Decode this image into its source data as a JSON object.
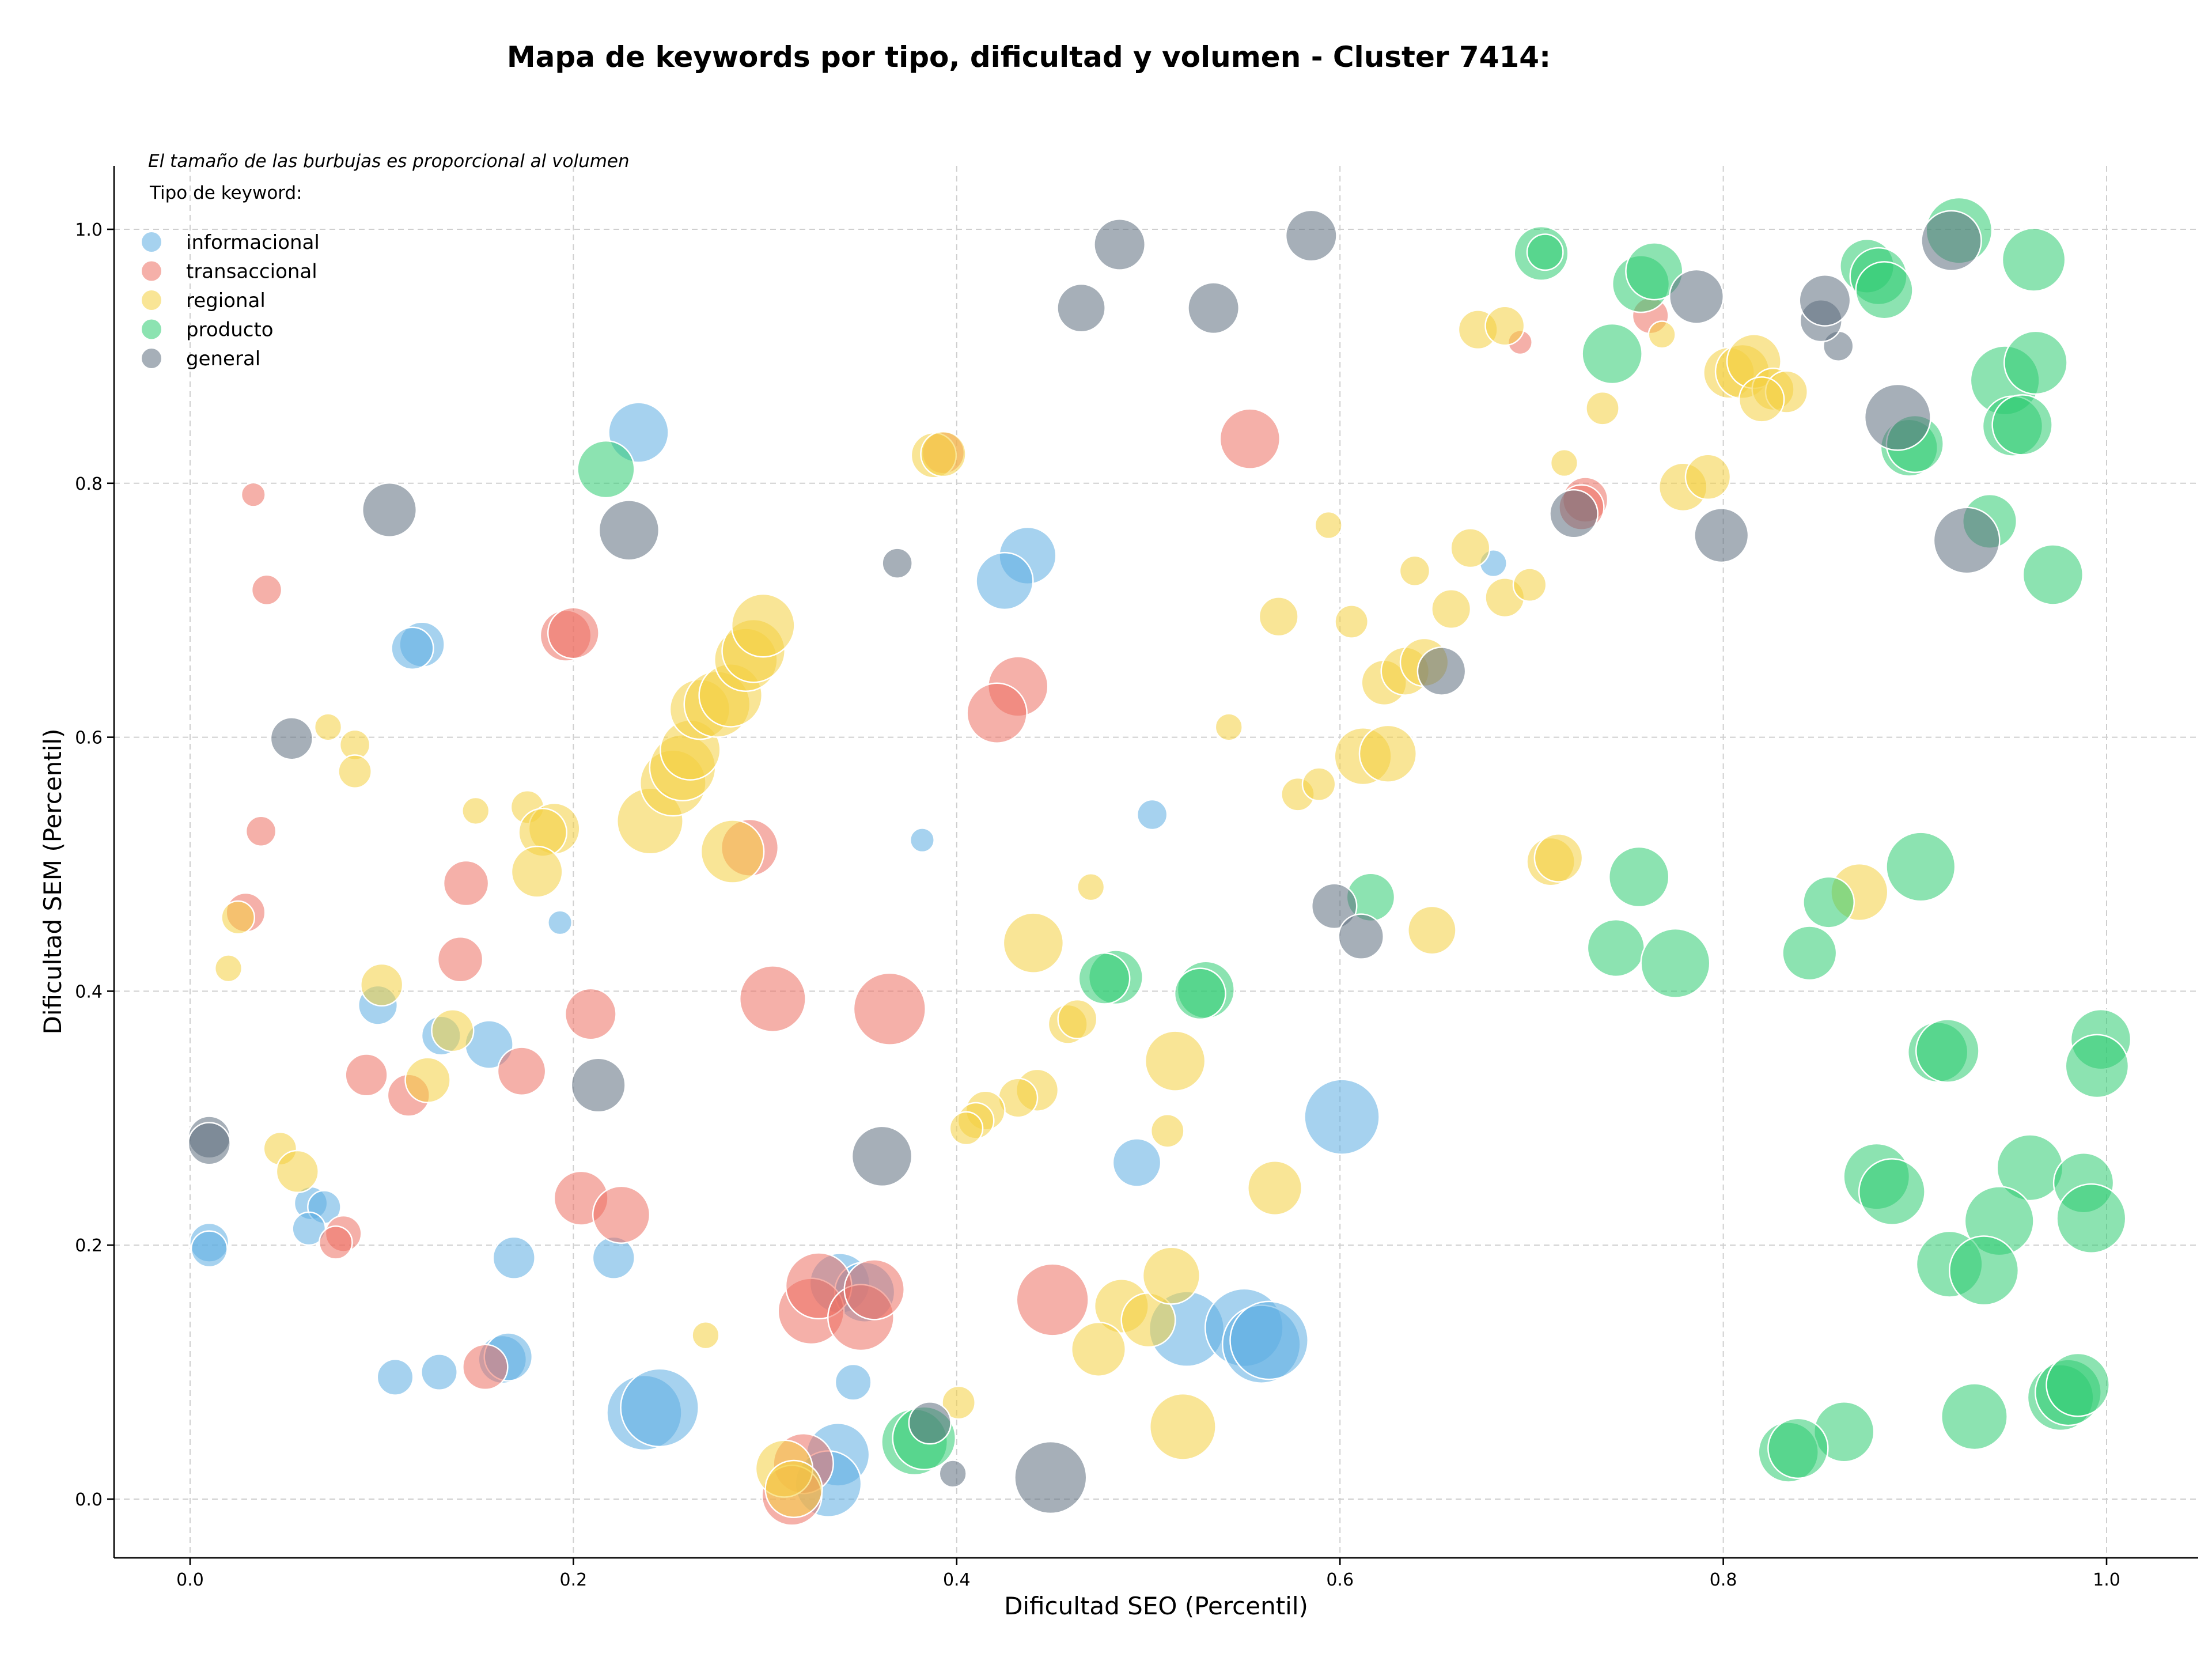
{
  "chart_data": {
    "type": "scatter",
    "title": "Mapa de keywords por tipo, dificultad y volumen - Cluster 7414:",
    "subtitle": "El tamaño de las burbujas es proporcional al volumen",
    "xlabel": "Dificultad SEO (Percentil)",
    "ylabel": "Dificultad SEM (Percentil)",
    "xlim": [
      -0.04,
      1.05
    ],
    "ylim": [
      -0.045,
      1.05
    ],
    "xticks": [
      "0.0",
      "0.2",
      "0.4",
      "0.6",
      "0.8",
      "1.0"
    ],
    "yticks": [
      "0.0",
      "0.2",
      "0.4",
      "0.6",
      "0.8",
      "1.0"
    ],
    "grid": true,
    "legend_title": "Tipo de keyword:",
    "legend_position": "top-left",
    "series": [
      {
        "name": "informacional",
        "color": "#5DADE2",
        "points": [
          [
            0.234,
            0.84,
            40
          ],
          [
            0.121,
            0.673,
            30
          ],
          [
            0.116,
            0.67,
            28
          ],
          [
            0.437,
            0.743,
            38
          ],
          [
            0.425,
            0.723,
            38
          ],
          [
            0.68,
            0.737,
            18
          ],
          [
            0.382,
            0.519,
            16
          ],
          [
            0.502,
            0.539,
            20
          ],
          [
            0.193,
            0.454,
            16
          ],
          [
            0.098,
            0.389,
            26
          ],
          [
            0.131,
            0.365,
            26
          ],
          [
            0.156,
            0.358,
            32
          ],
          [
            0.601,
            0.301,
            50
          ],
          [
            0.494,
            0.265,
            32
          ],
          [
            0.063,
            0.233,
            22
          ],
          [
            0.07,
            0.23,
            22
          ],
          [
            0.062,
            0.213,
            22
          ],
          [
            0.01,
            0.202,
            26
          ],
          [
            0.01,
            0.197,
            24
          ],
          [
            0.169,
            0.19,
            28
          ],
          [
            0.221,
            0.19,
            28
          ],
          [
            0.339,
            0.17,
            40
          ],
          [
            0.352,
            0.163,
            40
          ],
          [
            0.346,
            0.092,
            24
          ],
          [
            0.107,
            0.096,
            24
          ],
          [
            0.13,
            0.1,
            24
          ],
          [
            0.163,
            0.11,
            32
          ],
          [
            0.166,
            0.112,
            32
          ],
          [
            0.237,
            0.068,
            50
          ],
          [
            0.245,
            0.072,
            52
          ],
          [
            0.338,
            0.035,
            42
          ],
          [
            0.333,
            0.012,
            44
          ],
          [
            0.52,
            0.134,
            50
          ],
          [
            0.55,
            0.135,
            52
          ],
          [
            0.559,
            0.122,
            52
          ],
          [
            0.563,
            0.125,
            52
          ]
        ]
      },
      {
        "name": "transaccional",
        "color": "#EC7063",
        "points": [
          [
            0.033,
            0.791,
            16
          ],
          [
            0.04,
            0.716,
            20
          ],
          [
            0.037,
            0.526,
            20
          ],
          [
            0.029,
            0.462,
            26
          ],
          [
            0.144,
            0.485,
            30
          ],
          [
            0.141,
            0.425,
            30
          ],
          [
            0.196,
            0.68,
            34
          ],
          [
            0.2,
            0.682,
            34
          ],
          [
            0.432,
            0.64,
            40
          ],
          [
            0.421,
            0.619,
            40
          ],
          [
            0.553,
            0.835,
            40
          ],
          [
            0.393,
            0.824,
            28
          ],
          [
            0.292,
            0.513,
            38
          ],
          [
            0.304,
            0.394,
            44
          ],
          [
            0.365,
            0.386,
            48
          ],
          [
            0.209,
            0.382,
            34
          ],
          [
            0.092,
            0.334,
            28
          ],
          [
            0.114,
            0.318,
            28
          ],
          [
            0.173,
            0.337,
            32
          ],
          [
            0.204,
            0.237,
            36
          ],
          [
            0.225,
            0.224,
            38
          ],
          [
            0.08,
            0.209,
            24
          ],
          [
            0.076,
            0.202,
            22
          ],
          [
            0.154,
            0.104,
            30
          ],
          [
            0.324,
            0.148,
            44
          ],
          [
            0.328,
            0.168,
            44
          ],
          [
            0.35,
            0.143,
            44
          ],
          [
            0.357,
            0.165,
            40
          ],
          [
            0.45,
            0.157,
            48
          ],
          [
            0.32,
            0.028,
            40
          ],
          [
            0.314,
            0.003,
            40
          ],
          [
            0.762,
            0.932,
            24
          ],
          [
            0.694,
            0.911,
            16
          ],
          [
            0.728,
            0.787,
            30
          ],
          [
            0.726,
            0.781,
            30
          ]
        ]
      },
      {
        "name": "regional",
        "color": "#F4D03F",
        "points": [
          [
            0.072,
            0.608,
            18
          ],
          [
            0.086,
            0.594,
            20
          ],
          [
            0.086,
            0.573,
            22
          ],
          [
            0.149,
            0.542,
            18
          ],
          [
            0.176,
            0.545,
            22
          ],
          [
            0.19,
            0.528,
            34
          ],
          [
            0.184,
            0.525,
            32
          ],
          [
            0.181,
            0.494,
            34
          ],
          [
            0.025,
            0.458,
            22
          ],
          [
            0.02,
            0.418,
            18
          ],
          [
            0.1,
            0.405,
            28
          ],
          [
            0.137,
            0.369,
            28
          ],
          [
            0.124,
            0.33,
            30
          ],
          [
            0.047,
            0.276,
            22
          ],
          [
            0.056,
            0.258,
            28
          ],
          [
            0.24,
            0.534,
            44
          ],
          [
            0.252,
            0.564,
            44
          ],
          [
            0.257,
            0.576,
            44
          ],
          [
            0.261,
            0.59,
            40
          ],
          [
            0.266,
            0.622,
            40
          ],
          [
            0.275,
            0.626,
            44
          ],
          [
            0.282,
            0.633,
            42
          ],
          [
            0.29,
            0.661,
            42
          ],
          [
            0.294,
            0.668,
            42
          ],
          [
            0.299,
            0.688,
            42
          ],
          [
            0.283,
            0.51,
            42
          ],
          [
            0.388,
            0.822,
            30
          ],
          [
            0.393,
            0.823,
            30
          ],
          [
            0.44,
            0.438,
            40
          ],
          [
            0.458,
            0.374,
            26
          ],
          [
            0.463,
            0.378,
            26
          ],
          [
            0.47,
            0.482,
            18
          ],
          [
            0.442,
            0.322,
            28
          ],
          [
            0.432,
            0.316,
            26
          ],
          [
            0.415,
            0.306,
            26
          ],
          [
            0.41,
            0.298,
            24
          ],
          [
            0.405,
            0.292,
            22
          ],
          [
            0.514,
            0.345,
            40
          ],
          [
            0.51,
            0.29,
            22
          ],
          [
            0.401,
            0.076,
            22
          ],
          [
            0.269,
            0.129,
            18
          ],
          [
            0.31,
            0.024,
            38
          ],
          [
            0.315,
            0.008,
            38
          ],
          [
            0.486,
            0.152,
            36
          ],
          [
            0.5,
            0.141,
            36
          ],
          [
            0.512,
            0.176,
            38
          ],
          [
            0.474,
            0.118,
            36
          ],
          [
            0.518,
            0.057,
            44
          ],
          [
            0.566,
            0.245,
            36
          ],
          [
            0.542,
            0.608,
            18
          ],
          [
            0.578,
            0.555,
            22
          ],
          [
            0.589,
            0.563,
            22
          ],
          [
            0.594,
            0.767,
            18
          ],
          [
            0.568,
            0.695,
            26
          ],
          [
            0.606,
            0.691,
            22
          ],
          [
            0.639,
            0.731,
            20
          ],
          [
            0.612,
            0.585,
            38
          ],
          [
            0.625,
            0.587,
            38
          ],
          [
            0.623,
            0.643,
            30
          ],
          [
            0.634,
            0.652,
            32
          ],
          [
            0.644,
            0.659,
            32
          ],
          [
            0.648,
            0.448,
            32
          ],
          [
            0.658,
            0.701,
            26
          ],
          [
            0.668,
            0.749,
            26
          ],
          [
            0.686,
            0.71,
            26
          ],
          [
            0.699,
            0.72,
            22
          ],
          [
            0.672,
            0.921,
            26
          ],
          [
            0.686,
            0.924,
            26
          ],
          [
            0.71,
            0.502,
            32
          ],
          [
            0.714,
            0.505,
            32
          ],
          [
            0.717,
            0.816,
            18
          ],
          [
            0.737,
            0.859,
            22
          ],
          [
            0.768,
            0.917,
            18
          ],
          [
            0.779,
            0.797,
            32
          ],
          [
            0.792,
            0.805,
            30
          ],
          [
            0.803,
            0.887,
            34
          ],
          [
            0.81,
            0.888,
            36
          ],
          [
            0.816,
            0.896,
            36
          ],
          [
            0.826,
            0.874,
            28
          ],
          [
            0.833,
            0.872,
            28
          ],
          [
            0.82,
            0.866,
            30
          ],
          [
            0.871,
            0.478,
            38
          ]
        ]
      },
      {
        "name": "producto",
        "color": "#2ECC71",
        "points": [
          [
            0.217,
            0.811,
            38
          ],
          [
            0.705,
            0.981,
            36
          ],
          [
            0.707,
            0.982,
            24
          ],
          [
            0.757,
            0.957,
            38
          ],
          [
            0.764,
            0.967,
            38
          ],
          [
            0.742,
            0.902,
            40
          ],
          [
            0.875,
            0.971,
            36
          ],
          [
            0.881,
            0.963,
            38
          ],
          [
            0.884,
            0.952,
            38
          ],
          [
            0.923,
            0.999,
            44
          ],
          [
            0.962,
            0.976,
            42
          ],
          [
            0.947,
            0.881,
            46
          ],
          [
            0.963,
            0.895,
            42
          ],
          [
            0.951,
            0.845,
            40
          ],
          [
            0.956,
            0.846,
            40
          ],
          [
            0.897,
            0.828,
            38
          ],
          [
            0.9,
            0.831,
            38
          ],
          [
            0.939,
            0.77,
            36
          ],
          [
            0.972,
            0.728,
            40
          ],
          [
            0.903,
            0.498,
            46
          ],
          [
            0.912,
            0.352,
            40
          ],
          [
            0.917,
            0.353,
            42
          ],
          [
            0.997,
            0.362,
            40
          ],
          [
            0.995,
            0.341,
            42
          ],
          [
            0.756,
            0.49,
            40
          ],
          [
            0.744,
            0.434,
            38
          ],
          [
            0.775,
            0.422,
            46
          ],
          [
            0.855,
            0.47,
            34
          ],
          [
            0.845,
            0.43,
            36
          ],
          [
            0.616,
            0.474,
            32
          ],
          [
            0.483,
            0.411,
            36
          ],
          [
            0.477,
            0.41,
            34
          ],
          [
            0.53,
            0.401,
            38
          ],
          [
            0.527,
            0.398,
            34
          ],
          [
            0.88,
            0.254,
            44
          ],
          [
            0.888,
            0.242,
            44
          ],
          [
            0.96,
            0.261,
            44
          ],
          [
            0.988,
            0.249,
            40
          ],
          [
            0.944,
            0.219,
            46
          ],
          [
            0.992,
            0.221,
            46
          ],
          [
            0.918,
            0.185,
            44
          ],
          [
            0.936,
            0.18,
            46
          ],
          [
            0.863,
            0.053,
            40
          ],
          [
            0.834,
            0.037,
            40
          ],
          [
            0.839,
            0.04,
            40
          ],
          [
            0.931,
            0.065,
            44
          ],
          [
            0.976,
            0.08,
            44
          ],
          [
            0.98,
            0.084,
            44
          ],
          [
            0.985,
            0.09,
            42
          ],
          [
            0.378,
            0.045,
            44
          ],
          [
            0.383,
            0.048,
            42
          ]
        ]
      },
      {
        "name": "general",
        "color": "#5D6D7E",
        "points": [
          [
            0.485,
            0.988,
            34
          ],
          [
            0.585,
            0.995,
            34
          ],
          [
            0.465,
            0.938,
            32
          ],
          [
            0.534,
            0.938,
            34
          ],
          [
            0.104,
            0.779,
            36
          ],
          [
            0.229,
            0.763,
            40
          ],
          [
            0.369,
            0.737,
            20
          ],
          [
            0.053,
            0.599,
            28
          ],
          [
            0.01,
            0.285,
            28
          ],
          [
            0.01,
            0.28,
            28
          ],
          [
            0.213,
            0.326,
            36
          ],
          [
            0.361,
            0.27,
            40
          ],
          [
            0.386,
            0.06,
            28
          ],
          [
            0.398,
            0.02,
            18
          ],
          [
            0.449,
            0.017,
            48
          ],
          [
            0.597,
            0.467,
            30
          ],
          [
            0.611,
            0.443,
            30
          ],
          [
            0.653,
            0.652,
            32
          ],
          [
            0.722,
            0.776,
            32
          ],
          [
            0.786,
            0.947,
            36
          ],
          [
            0.799,
            0.759,
            36
          ],
          [
            0.86,
            0.908,
            20
          ],
          [
            0.851,
            0.928,
            28
          ],
          [
            0.853,
            0.944,
            34
          ],
          [
            0.891,
            0.852,
            44
          ],
          [
            0.919,
            0.991,
            40
          ],
          [
            0.927,
            0.755,
            44
          ]
        ]
      }
    ]
  }
}
